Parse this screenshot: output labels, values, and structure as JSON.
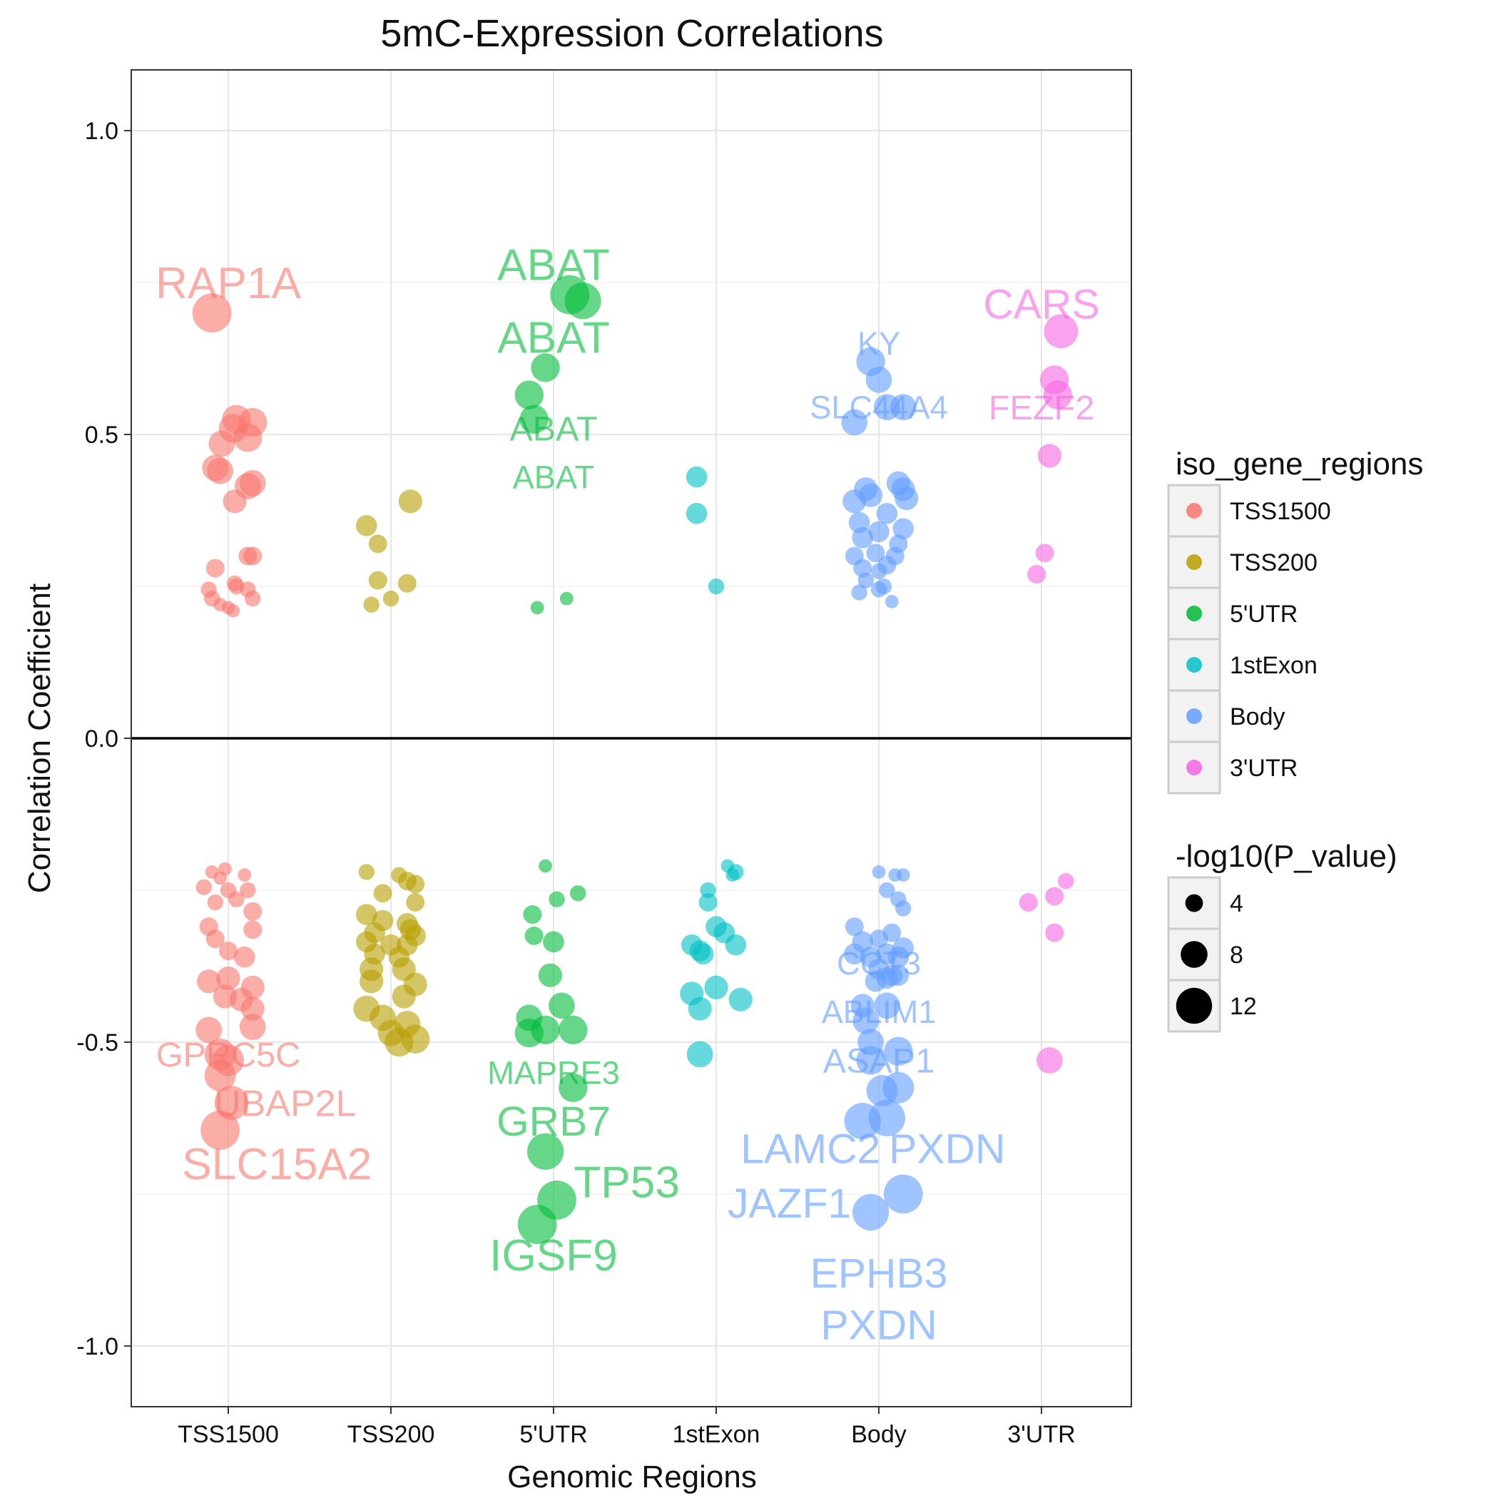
{
  "chart_data": {
    "type": "scatter",
    "title": "5mC-Expression Correlations",
    "xlabel": "Genomic Regions",
    "ylabel": "Correlation Coefficient",
    "categories": [
      "TSS1500",
      "TSS200",
      "5'UTR",
      "1stExon",
      "Body",
      "3'UTR"
    ],
    "ylim": [
      -1.1,
      1.1
    ],
    "yticks": [
      1.0,
      0.5,
      0.0,
      -0.5,
      -1.0
    ],
    "ytick_labels": [
      "1.0",
      "0.5",
      "0.0",
      "-0.5",
      "-1.0"
    ],
    "grid": true,
    "reference_line_y": 0.0,
    "colors": {
      "TSS1500": "#F8766D",
      "TSS200": "#B79F00",
      "5'UTR": "#00BA38",
      "1stExon": "#00BFC4",
      "Body": "#619CFF",
      "3'UTR": "#F564E3"
    },
    "legend": {
      "position": "right",
      "color_title": "iso_gene_regions",
      "color_entries": [
        "TSS1500",
        "TSS200",
        "5'UTR",
        "1stExon",
        "Body",
        "3'UTR"
      ],
      "size_title": "-log10(P_value)",
      "size_entries": [
        4,
        8,
        12
      ],
      "size_labels": [
        "4",
        "8",
        "12"
      ]
    },
    "series": [
      {
        "name": "TSS1500",
        "points": [
          [
            -0.1,
            0.7,
            13
          ],
          [
            0.05,
            0.525,
            9
          ],
          [
            0.03,
            0.51,
            9
          ],
          [
            -0.04,
            0.485,
            8
          ],
          [
            0.12,
            0.495,
            9
          ],
          [
            0.15,
            0.52,
            9
          ],
          [
            -0.08,
            0.445,
            8
          ],
          [
            -0.05,
            0.44,
            8
          ],
          [
            0.12,
            0.415,
            8
          ],
          [
            0.15,
            0.42,
            8
          ],
          [
            0.04,
            0.39,
            7
          ],
          [
            -0.08,
            0.28,
            5
          ],
          [
            0.12,
            0.3,
            5
          ],
          [
            0.15,
            0.3,
            5
          ],
          [
            -0.12,
            0.245,
            4
          ],
          [
            0.05,
            0.25,
            4
          ],
          [
            0.12,
            0.245,
            4
          ],
          [
            0.04,
            0.255,
            4
          ],
          [
            -0.1,
            0.23,
            4
          ],
          [
            -0.05,
            0.22,
            3
          ],
          [
            0.0,
            0.215,
            3
          ],
          [
            0.03,
            0.21,
            3
          ],
          [
            0.15,
            0.23,
            4
          ],
          [
            -0.1,
            -0.22,
            3
          ],
          [
            -0.05,
            -0.23,
            3
          ],
          [
            0.1,
            -0.225,
            3
          ],
          [
            -0.02,
            -0.215,
            3
          ],
          [
            -0.15,
            -0.245,
            4
          ],
          [
            0.0,
            -0.25,
            4
          ],
          [
            0.12,
            -0.25,
            4
          ],
          [
            -0.08,
            -0.27,
            4
          ],
          [
            0.05,
            -0.265,
            4
          ],
          [
            0.15,
            -0.285,
            5
          ],
          [
            -0.12,
            -0.31,
            5
          ],
          [
            0.15,
            -0.315,
            5
          ],
          [
            -0.08,
            -0.33,
            5
          ],
          [
            0.0,
            -0.35,
            5
          ],
          [
            0.1,
            -0.36,
            6
          ],
          [
            -0.12,
            -0.4,
            7
          ],
          [
            0.0,
            -0.395,
            7
          ],
          [
            0.15,
            -0.41,
            7
          ],
          [
            -0.02,
            -0.425,
            7
          ],
          [
            0.08,
            -0.43,
            7
          ],
          [
            0.15,
            -0.445,
            7
          ],
          [
            -0.12,
            -0.48,
            8
          ],
          [
            0.15,
            -0.475,
            8
          ],
          [
            -0.05,
            -0.52,
            10
          ],
          [
            0.0,
            -0.53,
            10
          ],
          [
            -0.05,
            -0.555,
            10
          ],
          [
            0.02,
            -0.6,
            11
          ],
          [
            -0.05,
            -0.645,
            13
          ]
        ],
        "labels": [
          {
            "text": "RAP1A",
            "y": 0.75,
            "size": 13
          },
          {
            "text": "GPRC5C",
            "y": -0.52,
            "size": 9
          },
          {
            "text": "UBAP2L",
            "y": -0.6,
            "size": 10
          },
          {
            "text": "SLC15A2",
            "y": -0.7,
            "size": 13
          }
        ]
      },
      {
        "name": "TSS200",
        "points": [
          [
            -0.15,
            0.35,
            6
          ],
          [
            -0.08,
            0.32,
            5
          ],
          [
            0.12,
            0.39,
            7
          ],
          [
            -0.08,
            0.26,
            5
          ],
          [
            0.1,
            0.255,
            5
          ],
          [
            -0.12,
            0.22,
            4
          ],
          [
            0.0,
            0.23,
            4
          ],
          [
            -0.15,
            -0.22,
            4
          ],
          [
            0.05,
            -0.225,
            4
          ],
          [
            0.1,
            -0.235,
            5
          ],
          [
            0.15,
            -0.24,
            5
          ],
          [
            -0.05,
            -0.255,
            5
          ],
          [
            0.15,
            -0.27,
            5
          ],
          [
            -0.15,
            -0.29,
            6
          ],
          [
            -0.05,
            -0.3,
            6
          ],
          [
            0.1,
            -0.305,
            6
          ],
          [
            -0.1,
            -0.32,
            6
          ],
          [
            0.12,
            -0.315,
            6
          ],
          [
            0.15,
            -0.325,
            6
          ],
          [
            -0.15,
            -0.335,
            6
          ],
          [
            0.0,
            -0.34,
            6
          ],
          [
            0.1,
            -0.34,
            6
          ],
          [
            -0.1,
            -0.355,
            6
          ],
          [
            0.05,
            -0.36,
            6
          ],
          [
            -0.12,
            -0.38,
            7
          ],
          [
            0.08,
            -0.38,
            7
          ],
          [
            -0.12,
            -0.4,
            7
          ],
          [
            0.15,
            -0.405,
            7
          ],
          [
            0.08,
            -0.425,
            7
          ],
          [
            -0.15,
            -0.445,
            8
          ],
          [
            -0.05,
            -0.46,
            8
          ],
          [
            0.1,
            -0.47,
            8
          ],
          [
            0.0,
            -0.485,
            8
          ],
          [
            0.15,
            -0.495,
            9
          ],
          [
            0.05,
            -0.5,
            9
          ]
        ],
        "labels": []
      },
      {
        "name": "5'UTR",
        "points": [
          [
            0.1,
            0.73,
            13
          ],
          [
            0.18,
            0.72,
            12
          ],
          [
            -0.05,
            0.61,
            9
          ],
          [
            -0.15,
            0.565,
            9
          ],
          [
            -0.12,
            0.525,
            9
          ],
          [
            0.08,
            0.23,
            3
          ],
          [
            -0.1,
            0.215,
            3
          ],
          [
            -0.05,
            -0.21,
            3
          ],
          [
            0.15,
            -0.255,
            4
          ],
          [
            0.02,
            -0.265,
            4
          ],
          [
            -0.13,
            -0.29,
            5
          ],
          [
            -0.12,
            -0.325,
            5
          ],
          [
            0.0,
            -0.335,
            6
          ],
          [
            -0.02,
            -0.39,
            7
          ],
          [
            -0.15,
            -0.46,
            8
          ],
          [
            0.05,
            -0.44,
            8
          ],
          [
            -0.05,
            -0.48,
            9
          ],
          [
            0.12,
            -0.48,
            9
          ],
          [
            -0.15,
            -0.485,
            9
          ],
          [
            0.12,
            -0.575,
            9
          ],
          [
            -0.05,
            -0.68,
            12
          ],
          [
            0.02,
            -0.76,
            13
          ],
          [
            -0.1,
            -0.8,
            13
          ]
        ],
        "labels": [
          {
            "text": "ABAT",
            "y": 0.78,
            "size": 13
          },
          {
            "text": "ABAT",
            "y": 0.66,
            "size": 13
          },
          {
            "text": "ABAT",
            "y": 0.51,
            "size": 9
          },
          {
            "text": "ABAT",
            "y": 0.43,
            "size": 8
          },
          {
            "text": "MAPRE3",
            "y": -0.55,
            "size": 8
          },
          {
            "text": "GRB7",
            "y": -0.63,
            "size": 12
          },
          {
            "text": "TP53",
            "y": -0.73,
            "size": 13
          },
          {
            "text": "IGSF9",
            "y": -0.85,
            "size": 13
          }
        ]
      },
      {
        "name": "1stExon",
        "points": [
          [
            -0.12,
            0.37,
            6
          ],
          [
            -0.12,
            0.43,
            6
          ],
          [
            0.0,
            0.25,
            4
          ],
          [
            0.07,
            -0.21,
            3
          ],
          [
            0.1,
            -0.225,
            3
          ],
          [
            -0.05,
            -0.25,
            4
          ],
          [
            0.12,
            -0.22,
            4
          ],
          [
            -0.05,
            -0.27,
            5
          ],
          [
            0.0,
            -0.31,
            6
          ],
          [
            0.12,
            -0.34,
            6
          ],
          [
            -0.15,
            -0.34,
            6
          ],
          [
            0.05,
            -0.32,
            6
          ],
          [
            -0.08,
            -0.355,
            6
          ],
          [
            -0.1,
            -0.35,
            6
          ],
          [
            0.0,
            -0.41,
            7
          ],
          [
            -0.15,
            -0.42,
            7
          ],
          [
            0.15,
            -0.43,
            7
          ],
          [
            -0.1,
            -0.445,
            7
          ],
          [
            -0.1,
            -0.52,
            8
          ]
        ],
        "labels": []
      },
      {
        "name": "Body",
        "points": [
          [
            -0.05,
            0.62,
            9
          ],
          [
            0.0,
            0.59,
            8
          ],
          [
            -0.15,
            0.52,
            8
          ],
          [
            0.05,
            0.545,
            8
          ],
          [
            0.15,
            0.545,
            8
          ],
          [
            0.12,
            0.42,
            7
          ],
          [
            0.15,
            0.41,
            7
          ],
          [
            -0.08,
            0.41,
            7
          ],
          [
            -0.05,
            0.4,
            7
          ],
          [
            -0.15,
            0.39,
            7
          ],
          [
            0.17,
            0.395,
            7
          ],
          [
            -0.12,
            0.355,
            6
          ],
          [
            0.05,
            0.37,
            6
          ],
          [
            0.15,
            0.345,
            6
          ],
          [
            -0.1,
            0.33,
            6
          ],
          [
            0.0,
            0.34,
            6
          ],
          [
            0.1,
            0.3,
            5
          ],
          [
            -0.15,
            0.3,
            5
          ],
          [
            0.12,
            0.32,
            5
          ],
          [
            -0.02,
            0.305,
            5
          ],
          [
            0.05,
            0.285,
            5
          ],
          [
            -0.1,
            0.28,
            5
          ],
          [
            0.0,
            0.275,
            4
          ],
          [
            -0.08,
            0.26,
            4
          ],
          [
            0.03,
            0.25,
            4
          ],
          [
            -0.12,
            0.24,
            4
          ],
          [
            0.0,
            0.245,
            4
          ],
          [
            0.08,
            0.225,
            3
          ],
          [
            0.0,
            -0.22,
            3
          ],
          [
            0.1,
            -0.225,
            3
          ],
          [
            0.15,
            -0.225,
            3
          ],
          [
            0.05,
            -0.25,
            4
          ],
          [
            0.12,
            -0.265,
            4
          ],
          [
            0.15,
            -0.28,
            4
          ],
          [
            -0.15,
            -0.31,
            5
          ],
          [
            0.08,
            -0.32,
            5
          ],
          [
            -0.1,
            -0.335,
            6
          ],
          [
            0.0,
            -0.33,
            5
          ],
          [
            0.15,
            -0.345,
            6
          ],
          [
            0.05,
            -0.355,
            6
          ],
          [
            -0.15,
            -0.355,
            6
          ],
          [
            -0.05,
            -0.36,
            6
          ],
          [
            0.12,
            -0.36,
            6
          ],
          [
            0.0,
            -0.38,
            6
          ],
          [
            0.08,
            -0.39,
            6
          ],
          [
            -0.02,
            -0.4,
            6
          ],
          [
            0.12,
            -0.39,
            6
          ],
          [
            0.05,
            -0.395,
            6
          ],
          [
            -0.1,
            -0.44,
            7
          ],
          [
            0.05,
            -0.44,
            8
          ],
          [
            -0.08,
            -0.465,
            8
          ],
          [
            -0.05,
            -0.5,
            8
          ],
          [
            0.12,
            -0.515,
            9
          ],
          [
            -0.05,
            -0.53,
            9
          ],
          [
            0.02,
            -0.58,
            10
          ],
          [
            0.12,
            -0.575,
            10
          ],
          [
            -0.1,
            -0.63,
            12
          ],
          [
            0.05,
            -0.625,
            12
          ],
          [
            0.15,
            -0.75,
            13
          ],
          [
            -0.05,
            -0.78,
            12
          ]
        ],
        "labels": [
          {
            "text": "KY",
            "y": 0.65,
            "size": 8
          },
          {
            "text": "SLC44A4",
            "y": 0.545,
            "size": 8
          },
          {
            "text": "CCT3",
            "y": -0.37,
            "size": 8
          },
          {
            "text": "ABLIM1",
            "y": -0.45,
            "size": 8
          },
          {
            "text": "ASAP1",
            "y": -0.53,
            "size": 9
          },
          {
            "text": "LAMC2",
            "y": -0.675,
            "size": 12
          },
          {
            "text": "PXDN",
            "y": -0.675,
            "size": 12
          },
          {
            "text": "JAZF1",
            "y": -0.765,
            "size": 12
          },
          {
            "text": "EPHB3",
            "y": -0.88,
            "size": 12
          },
          {
            "text": "PXDN",
            "y": -0.965,
            "size": 12
          }
        ]
      },
      {
        "name": "3'UTR",
        "points": [
          [
            0.12,
            0.67,
            11
          ],
          [
            0.08,
            0.59,
            9
          ],
          [
            0.1,
            0.565,
            9
          ],
          [
            0.05,
            0.465,
            7
          ],
          [
            0.02,
            0.305,
            5
          ],
          [
            -0.03,
            0.27,
            5
          ],
          [
            0.15,
            -0.235,
            4
          ],
          [
            -0.08,
            -0.27,
            5
          ],
          [
            0.08,
            -0.26,
            5
          ],
          [
            0.08,
            -0.32,
            5
          ],
          [
            0.05,
            -0.53,
            8
          ]
        ],
        "labels": [
          {
            "text": "CARS",
            "y": 0.715,
            "size": 12
          },
          {
            "text": "FEZF2",
            "y": 0.545,
            "size": 9
          }
        ]
      }
    ]
  }
}
